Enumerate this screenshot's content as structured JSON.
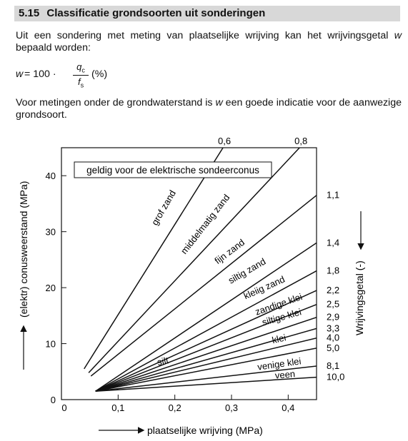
{
  "section": {
    "number": "5.15",
    "title": "Classificatie grondsoorten uit sonderingen"
  },
  "paragraph1": {
    "before": "Uit een sondering met meting van plaatselijke wrijving kan het wrijvingsgetal ",
    "var": "w",
    "after": " bepaald worden:"
  },
  "formula": {
    "lhs": "w",
    "equals": "= 100 ·",
    "numerator": "q",
    "numerator_sub": "c",
    "denominator": "f",
    "denominator_sub": "s",
    "unit": "(%)"
  },
  "paragraph2": {
    "before": "Voor metingen onder de grondwaterstand is ",
    "var": "w",
    "after": " een goede indicatie voor de aanwezige grondsoort."
  },
  "chart_data": {
    "type": "line",
    "title": "",
    "xlabel": "plaatselijke wrijving (MPa)",
    "ylabel": "(elektr) conusweerstand (MPa)",
    "right_label": "Wrijvingsgetal (-)",
    "xlim": [
      0,
      0.45
    ],
    "ylim": [
      0,
      45
    ],
    "x_ticks": [
      {
        "value": 0,
        "label": "0"
      },
      {
        "value": 0.1,
        "label": "0,1"
      },
      {
        "value": 0.2,
        "label": "0,2"
      },
      {
        "value": 0.3,
        "label": "0,3"
      },
      {
        "value": 0.4,
        "label": "0,4"
      }
    ],
    "y_ticks": [
      {
        "value": 0,
        "label": "0"
      },
      {
        "value": 10,
        "label": "10"
      },
      {
        "value": 20,
        "label": "20"
      },
      {
        "value": 30,
        "label": "30"
      },
      {
        "value": 40,
        "label": "40"
      }
    ],
    "annotation": "geldig voor de elektrische sondeerconus",
    "origin": [
      0.06,
      1.5
    ],
    "lines": [
      {
        "ratio": "0,6",
        "end": [
          0.285,
          45.0
        ],
        "start": [
          0.04,
          5.5
        ]
      },
      {
        "ratio": "0,8",
        "end": [
          0.42,
          45.0
        ],
        "start": [
          0.048,
          4.8
        ]
      },
      {
        "ratio": "1,1",
        "end": [
          0.45,
          36.5
        ],
        "start": [
          0.052,
          4.2
        ]
      },
      {
        "ratio": "1,4",
        "end": [
          0.45,
          28.0
        ]
      },
      {
        "ratio": "1,8",
        "end": [
          0.45,
          23.0
        ]
      },
      {
        "ratio": "2,2",
        "end": [
          0.45,
          19.5
        ]
      },
      {
        "ratio": "2,5",
        "end": [
          0.45,
          17.0
        ]
      },
      {
        "ratio": "2,9",
        "end": [
          0.45,
          14.7
        ]
      },
      {
        "ratio": "3,3",
        "end": [
          0.45,
          12.7
        ]
      },
      {
        "ratio": "4,0",
        "end": [
          0.45,
          11.0
        ]
      },
      {
        "ratio": "5,0",
        "end": [
          0.45,
          9.2
        ]
      },
      {
        "ratio": "8,1",
        "end": [
          0.45,
          6.0
        ]
      },
      {
        "ratio": "10,0",
        "end": [
          0.45,
          4.0
        ]
      }
    ],
    "zones": [
      {
        "name": "grof zand",
        "at": [
          0.185,
          34.0
        ],
        "angle": -60
      },
      {
        "name": "middelmatig zand",
        "at": [
          0.258,
          31.0
        ],
        "angle": -52
      },
      {
        "name": "fijn zand",
        "at": [
          0.3,
          26.0
        ],
        "angle": -37
      },
      {
        "name": "siltig zand",
        "at": [
          0.33,
          22.5
        ],
        "angle": -30
      },
      {
        "name": "kleiig zand",
        "at": [
          0.36,
          19.5
        ],
        "angle": -24
      },
      {
        "name": "zandige klei",
        "at": [
          0.385,
          16.5
        ],
        "angle": -19
      },
      {
        "name": "siltige klei",
        "at": [
          0.39,
          14.2
        ],
        "angle": -16
      },
      {
        "name": "klei",
        "at": [
          0.385,
          10.3
        ],
        "angle": -13
      },
      {
        "name": "silt",
        "at": [
          0.18,
          6.3
        ],
        "angle": -12
      },
      {
        "name": "venige klei",
        "at": [
          0.385,
          5.8
        ],
        "angle": -8
      },
      {
        "name": "veen",
        "at": [
          0.395,
          3.9
        ],
        "angle": -5
      }
    ]
  }
}
